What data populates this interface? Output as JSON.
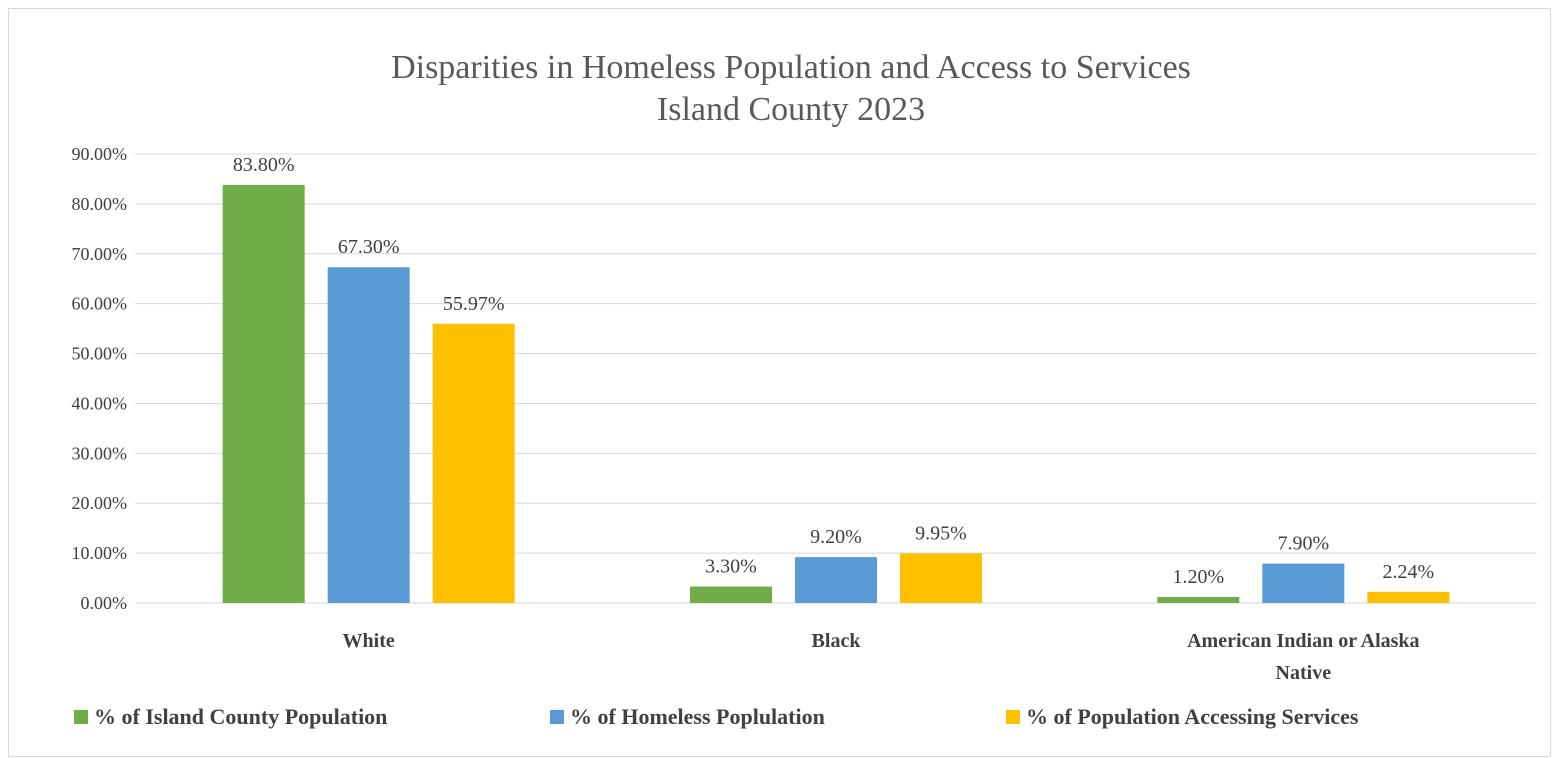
{
  "chart_data": {
    "type": "bar",
    "title": "Disparities in Homeless Population and Access to Services",
    "subtitle": "Island County 2023",
    "categories": [
      [
        "White"
      ],
      [
        "Black"
      ],
      [
        "American Indian or Alaska",
        "Native"
      ]
    ],
    "series": [
      {
        "name": "% of Island County Population",
        "color": "#70ad47",
        "values": [
          83.8,
          3.3,
          1.2
        ],
        "labels": [
          "83.80%",
          "3.30%",
          "1.20%"
        ]
      },
      {
        "name": "% of Homeless Poplulation",
        "color": "#5b9bd5",
        "values": [
          67.3,
          9.2,
          7.9
        ],
        "labels": [
          "67.30%",
          "9.20%",
          "7.90%"
        ]
      },
      {
        "name": "% of Population Accessing Services",
        "color": "#ffc000",
        "values": [
          55.97,
          9.95,
          2.24
        ],
        "labels": [
          "55.97%",
          "9.95%",
          "2.24%"
        ]
      }
    ],
    "yticks": [
      0,
      10,
      20,
      30,
      40,
      50,
      60,
      70,
      80,
      90
    ],
    "ytick_labels": [
      "0.00%",
      "10.00%",
      "20.00%",
      "30.00%",
      "40.00%",
      "50.00%",
      "60.00%",
      "70.00%",
      "80.00%",
      "90.00%"
    ],
    "ylim": [
      0,
      90
    ],
    "grid": true,
    "legend_position": "bottom"
  }
}
